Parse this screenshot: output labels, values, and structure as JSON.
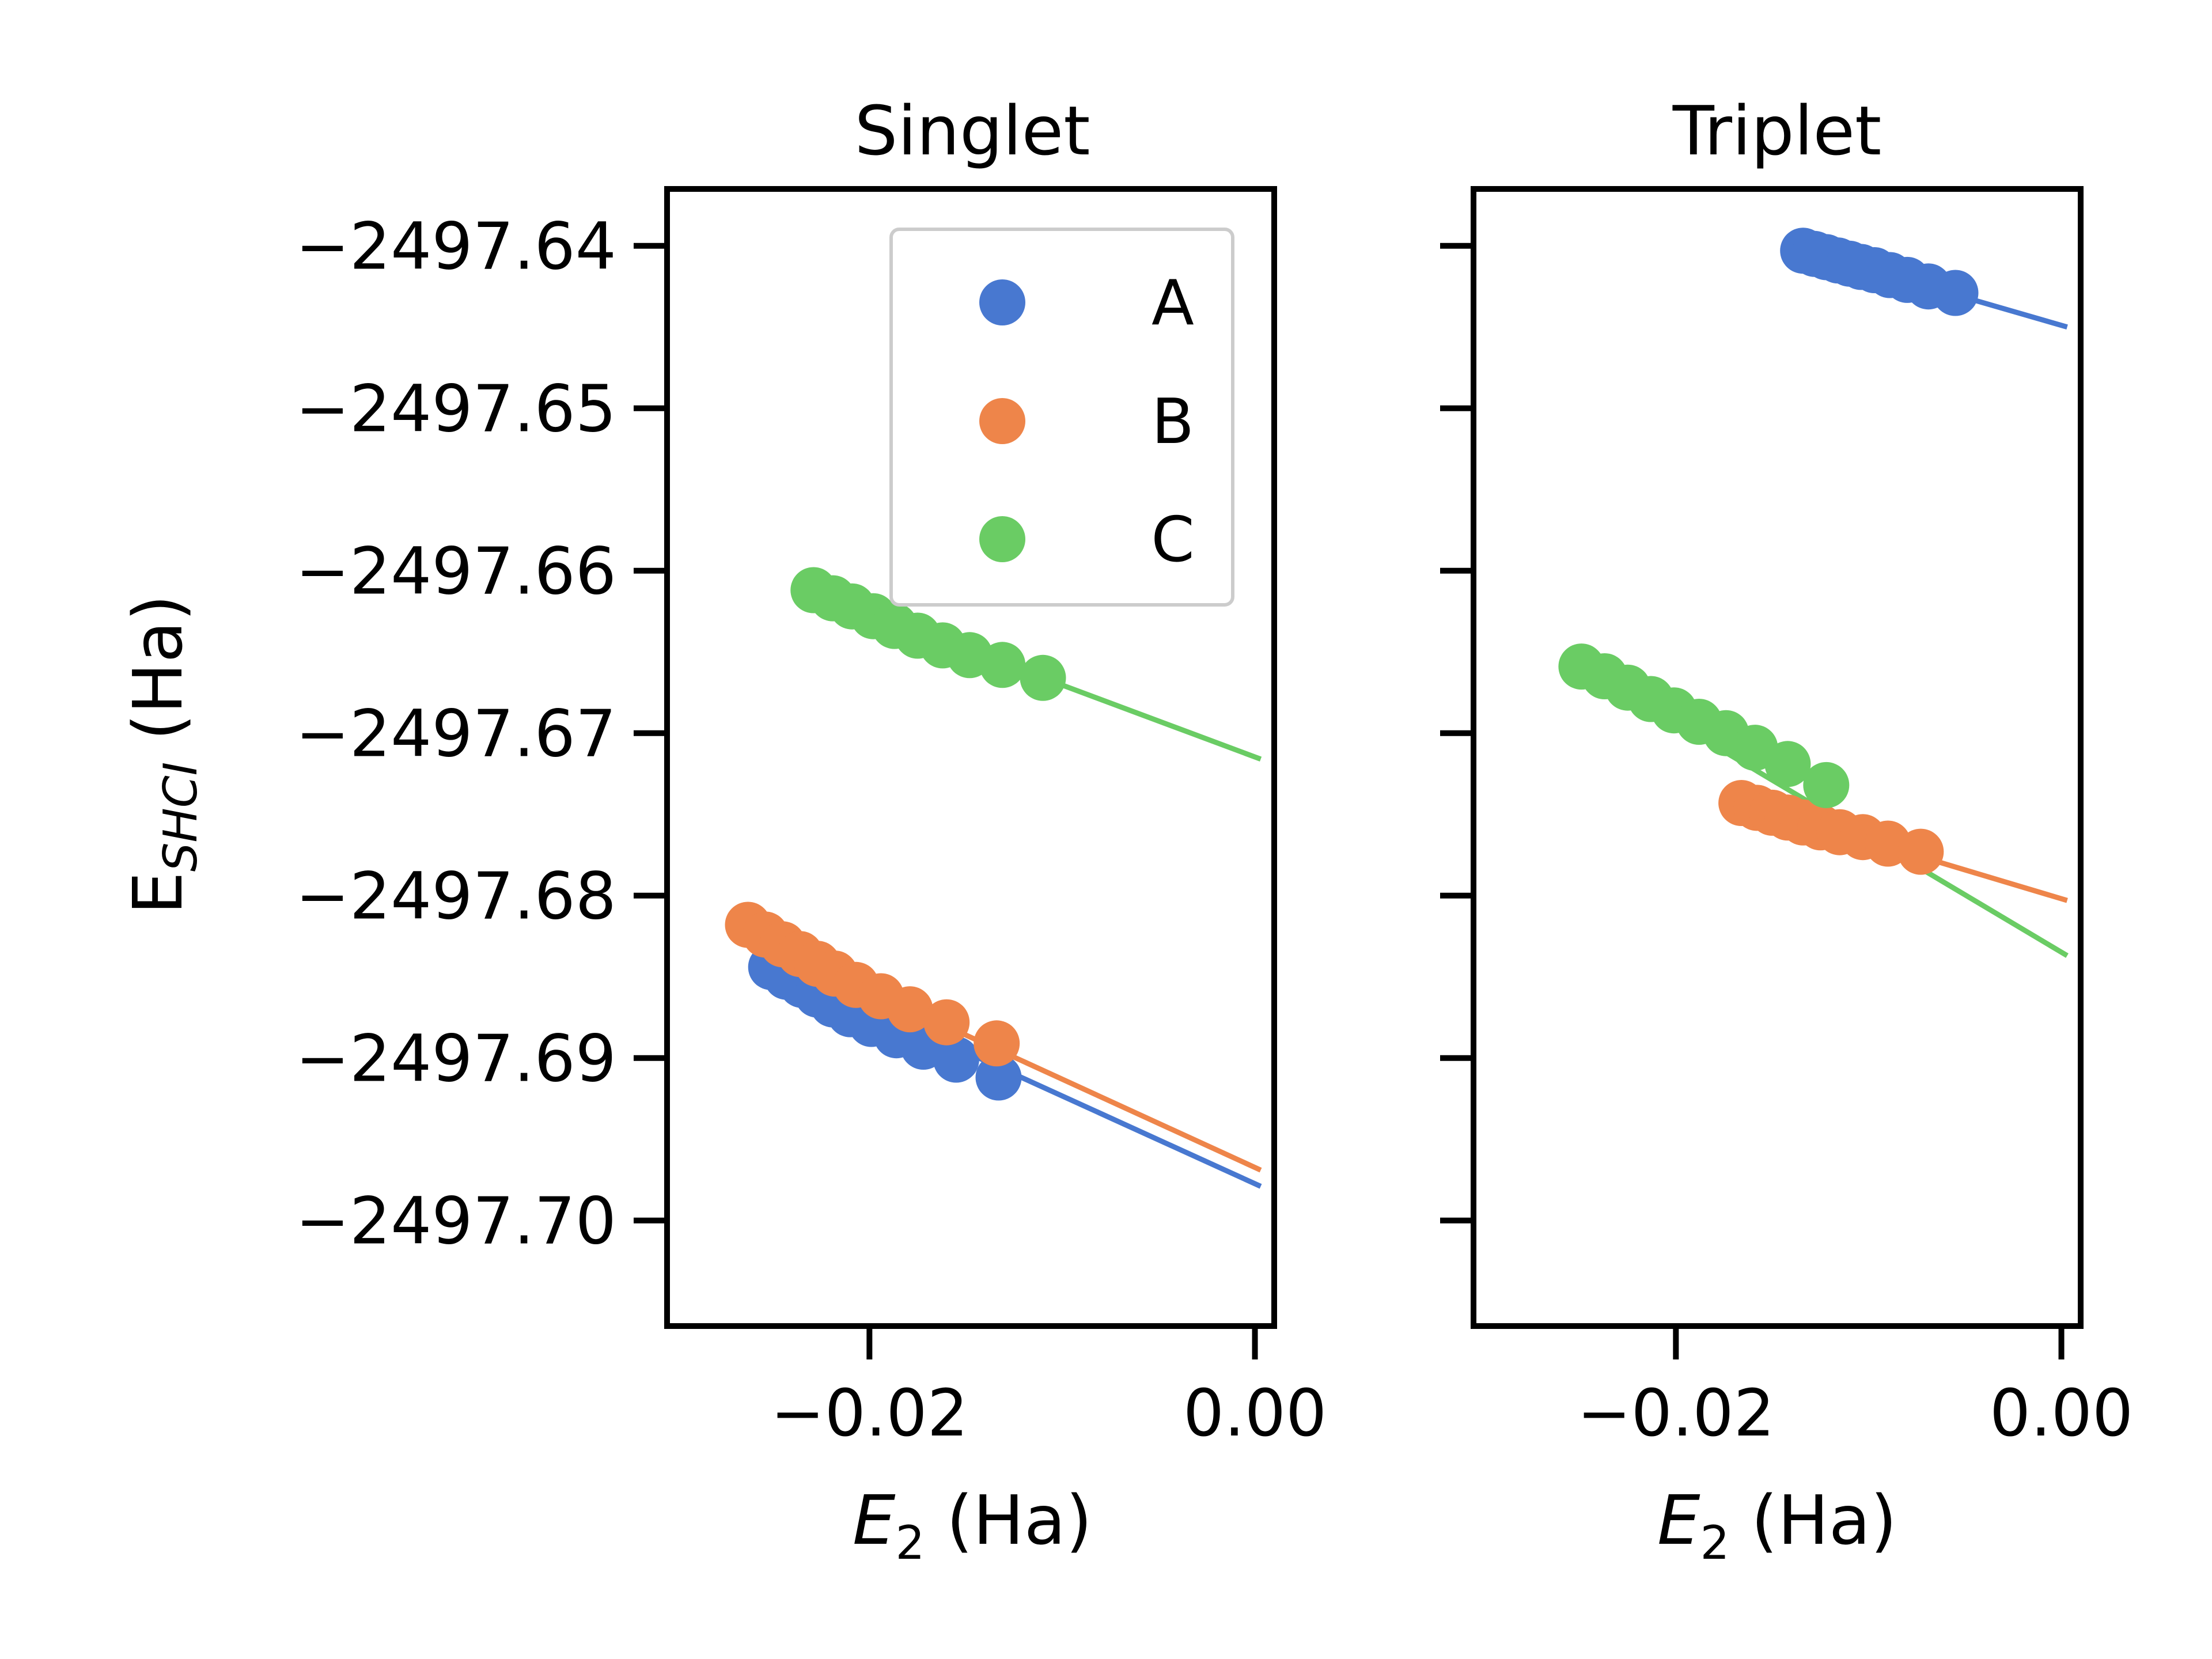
{
  "colors": {
    "A": "#4878d0",
    "B": "#ee854a",
    "C": "#6acc64"
  },
  "ylabel": {
    "main": "E",
    "sub": "SHCI",
    "rest": " (Ha)"
  },
  "xlabel": {
    "main": "E",
    "sub": "2",
    "rest": " (Ha)"
  },
  "yticks": [
    "−2497.64",
    "−2497.65",
    "−2497.66",
    "−2497.67",
    "−2497.68",
    "−2497.69",
    "−2497.70"
  ],
  "xticks": [
    "−0.02",
    "0.00"
  ],
  "legend": {
    "placement": "upper-right",
    "entries": [
      "A",
      "B",
      "C"
    ]
  },
  "chart_data": [
    {
      "type": "scatter",
      "title": "Singlet",
      "xlim": [
        -0.0305,
        0.001
      ],
      "ylim": [
        -2497.7065,
        -2497.6365
      ],
      "series": [
        {
          "name": "A",
          "x": [
            -0.0251,
            -0.0243,
            -0.0235,
            -0.0227,
            -0.0219,
            -0.021,
            -0.0199,
            -0.0186,
            -0.0172,
            -0.0155,
            -0.0133
          ],
          "y": [
            -2497.6844,
            -2497.685,
            -2497.6855,
            -2497.6861,
            -2497.6867,
            -2497.6873,
            -2497.6879,
            -2497.6886,
            -2497.6893,
            -2497.6901,
            -2497.6912
          ],
          "fit": {
            "x": [
              -0.0258,
              0.0003
            ],
            "y": [
              -2497.6838,
              -2497.6979
            ]
          }
        },
        {
          "name": "B",
          "x": [
            -0.0263,
            -0.0254,
            -0.0245,
            -0.0236,
            -0.0227,
            -0.0218,
            -0.0207,
            -0.0194,
            -0.0179,
            -0.016,
            -0.0134
          ],
          "y": [
            -2497.6818,
            -2497.6824,
            -2497.683,
            -2497.6836,
            -2497.6842,
            -2497.6848,
            -2497.6855,
            -2497.6862,
            -2497.687,
            -2497.6878,
            -2497.6891
          ],
          "fit": {
            "x": [
              -0.0262,
              0.0003
            ],
            "y": [
              -2497.6825,
              -2497.6969
            ]
          }
        },
        {
          "name": "C",
          "x": [
            -0.0229,
            -0.0219,
            -0.0209,
            -0.0198,
            -0.0187,
            -0.0175,
            -0.0162,
            -0.0148,
            -0.0131,
            -0.011
          ],
          "y": [
            -2497.6612,
            -2497.6617,
            -2497.6622,
            -2497.6628,
            -2497.6634,
            -2497.664,
            -2497.6646,
            -2497.6652,
            -2497.6658,
            -2497.6666
          ],
          "fit": {
            "x": [
              -0.011,
              0.0003
            ],
            "y": [
              -2497.6666,
              -2497.6716
            ]
          }
        }
      ]
    },
    {
      "type": "scatter",
      "title": "Triplet",
      "xlim": [
        -0.0305,
        0.001
      ],
      "ylim": [
        -2497.7065,
        -2497.6365
      ],
      "series": [
        {
          "name": "A",
          "x": [
            -0.0134,
            -0.0128,
            -0.0122,
            -0.0116,
            -0.011,
            -0.0104,
            -0.0097,
            -0.0089,
            -0.008,
            -0.0069,
            -0.0055
          ],
          "y": [
            -2497.6403,
            -2497.6405,
            -2497.6407,
            -2497.6409,
            -2497.6411,
            -2497.6413,
            -2497.6415,
            -2497.6418,
            -2497.6421,
            -2497.6425,
            -2497.6429
          ],
          "fit": {
            "x": [
              -0.0134,
              0.0003
            ],
            "y": [
              -2497.6403,
              -2497.645
            ]
          }
        },
        {
          "name": "B",
          "x": [
            -0.0166,
            -0.0158,
            -0.015,
            -0.0142,
            -0.0134,
            -0.0125,
            -0.0115,
            -0.0103,
            -0.009,
            -0.0073
          ],
          "y": [
            -2497.6743,
            -2497.6746,
            -2497.6749,
            -2497.6752,
            -2497.6755,
            -2497.6758,
            -2497.6761,
            -2497.6764,
            -2497.6768,
            -2497.6773
          ],
          "fit": {
            "x": [
              -0.0166,
              0.0003
            ],
            "y": [
              -2497.6743,
              -2497.6803
            ]
          }
        },
        {
          "name": "C",
          "x": [
            -0.0249,
            -0.0237,
            -0.0225,
            -0.0213,
            -0.0201,
            -0.0188,
            -0.0174,
            -0.0159,
            -0.0142,
            -0.0122
          ],
          "y": [
            -2497.6659,
            -2497.6665,
            -2497.6672,
            -2497.6679,
            -2497.6686,
            -2497.6693,
            -2497.67,
            -2497.6709,
            -2497.6719,
            -2497.6732
          ],
          "fit": {
            "x": [
              -0.0249,
              0.0003
            ],
            "y": [
              -2497.6659,
              -2497.6837
            ]
          }
        }
      ]
    }
  ]
}
